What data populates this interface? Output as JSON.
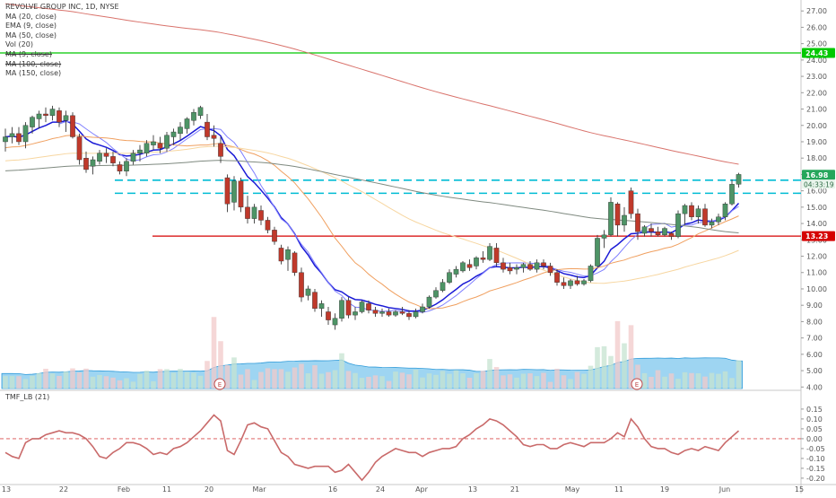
{
  "chart_data": {
    "type": "candlestick",
    "title": "REVOLVE GROUP INC, 1D, NYSE",
    "indicators": [
      "MA (20, close)",
      "EMA (9, close)",
      "MA (50, close)",
      "Vol (20)",
      "MA (9, close)",
      "MA (100, close)",
      "MA (150, close)"
    ],
    "price_axis_ticks": [
      "27.00",
      "26.00",
      "25.00",
      "24.00",
      "23.00",
      "22.00",
      "21.00",
      "20.00",
      "19.00",
      "18.00",
      "17.00",
      "16.00",
      "15.00",
      "14.00",
      "13.00",
      "12.00",
      "11.00",
      "10.00",
      "9.00",
      "8.00",
      "7.00",
      "6.00",
      "5.00",
      "4.00"
    ],
    "ylim": [
      3.8,
      27.5
    ],
    "date_axis_ticks": [
      "13",
      "22",
      "Feb",
      "11",
      "20",
      "Mar",
      "16",
      "24",
      "Apr",
      "13",
      "21",
      "May",
      "11",
      "19",
      "Jun",
      "15"
    ],
    "price_labels": {
      "last": "16.98",
      "countdown": "04:33:19",
      "resistance": "24.43",
      "support": "13.23"
    },
    "horizontal_levels": [
      {
        "price": 24.43,
        "color": "#00c800",
        "style": "solid"
      },
      {
        "price": 16.65,
        "color": "#00bcd4",
        "style": "dashed"
      },
      {
        "price": 15.85,
        "color": "#00bcd4",
        "style": "dashed"
      },
      {
        "price": 13.23,
        "color": "#d50000",
        "style": "solid"
      }
    ],
    "candles": [
      [
        19.0,
        19.8,
        18.4,
        19.3
      ],
      [
        19.3,
        19.9,
        18.9,
        19.5
      ],
      [
        19.5,
        19.9,
        18.8,
        19.0
      ],
      [
        19.0,
        20.2,
        18.6,
        20.0
      ],
      [
        19.9,
        20.6,
        19.5,
        20.5
      ],
      [
        20.4,
        20.9,
        19.8,
        20.7
      ],
      [
        20.7,
        21.1,
        20.2,
        20.6
      ],
      [
        20.6,
        21.2,
        20.3,
        21.0
      ],
      [
        20.9,
        21.1,
        19.9,
        20.2
      ],
      [
        20.3,
        20.9,
        19.6,
        20.6
      ],
      [
        20.6,
        20.8,
        19.2,
        19.3
      ],
      [
        19.3,
        19.5,
        17.6,
        17.9
      ],
      [
        18.0,
        18.4,
        17.1,
        17.3
      ],
      [
        17.5,
        18.1,
        17.0,
        17.9
      ],
      [
        17.8,
        18.5,
        17.6,
        18.3
      ],
      [
        18.3,
        18.6,
        17.7,
        18.1
      ],
      [
        18.1,
        18.4,
        17.5,
        17.7
      ],
      [
        17.6,
        17.8,
        17.0,
        17.2
      ],
      [
        17.2,
        18.0,
        16.9,
        17.8
      ],
      [
        17.8,
        18.5,
        17.6,
        18.3
      ],
      [
        18.3,
        18.8,
        17.8,
        18.5
      ],
      [
        18.3,
        19.1,
        18.1,
        18.9
      ],
      [
        18.8,
        19.4,
        18.5,
        19.0
      ],
      [
        18.9,
        19.3,
        18.3,
        18.6
      ],
      [
        18.6,
        19.6,
        18.4,
        19.4
      ],
      [
        19.3,
        19.8,
        18.8,
        19.6
      ],
      [
        19.5,
        20.2,
        19.1,
        19.9
      ],
      [
        19.8,
        20.5,
        19.5,
        20.4
      ],
      [
        20.3,
        21.0,
        20.0,
        20.8
      ],
      [
        20.6,
        21.2,
        20.4,
        21.1
      ],
      [
        20.2,
        20.7,
        19.1,
        19.3
      ],
      [
        19.4,
        20.0,
        18.7,
        19.2
      ],
      [
        18.9,
        19.3,
        17.7,
        18.1
      ],
      [
        16.8,
        17.0,
        14.7,
        15.2
      ],
      [
        15.3,
        16.9,
        14.8,
        16.6
      ],
      [
        16.6,
        16.8,
        14.7,
        15.0
      ],
      [
        15.0,
        15.7,
        14.0,
        14.3
      ],
      [
        14.3,
        15.2,
        14.0,
        15.0
      ],
      [
        14.8,
        15.1,
        13.9,
        14.2
      ],
      [
        14.2,
        14.4,
        13.4,
        13.6
      ],
      [
        13.6,
        13.8,
        12.7,
        12.9
      ],
      [
        12.5,
        12.7,
        11.5,
        11.7
      ],
      [
        11.8,
        12.6,
        11.1,
        12.4
      ],
      [
        12.2,
        12.3,
        10.8,
        11.0
      ],
      [
        11.0,
        11.3,
        9.2,
        9.5
      ],
      [
        9.6,
        10.2,
        9.3,
        10.0
      ],
      [
        9.8,
        10.0,
        8.6,
        8.8
      ],
      [
        8.8,
        9.3,
        8.3,
        9.1
      ],
      [
        8.6,
        8.9,
        7.8,
        8.1
      ],
      [
        7.8,
        8.5,
        7.5,
        8.2
      ],
      [
        8.2,
        9.5,
        8.0,
        9.3
      ],
      [
        9.3,
        9.5,
        8.2,
        8.4
      ],
      [
        8.4,
        8.9,
        8.1,
        8.6
      ],
      [
        8.6,
        9.3,
        8.5,
        9.2
      ],
      [
        9.1,
        9.3,
        8.5,
        8.7
      ],
      [
        8.7,
        8.9,
        8.3,
        8.5
      ],
      [
        8.5,
        8.8,
        8.3,
        8.6
      ],
      [
        8.6,
        8.8,
        8.3,
        8.4
      ],
      [
        8.4,
        8.7,
        8.3,
        8.6
      ],
      [
        8.6,
        8.9,
        8.4,
        8.5
      ],
      [
        8.5,
        8.7,
        8.1,
        8.3
      ],
      [
        8.3,
        8.8,
        8.2,
        8.6
      ],
      [
        8.6,
        9.1,
        8.5,
        8.9
      ],
      [
        8.9,
        9.6,
        8.8,
        9.5
      ],
      [
        9.5,
        10.1,
        9.4,
        9.9
      ],
      [
        9.9,
        10.6,
        9.8,
        10.4
      ],
      [
        10.4,
        11.2,
        10.3,
        11.0
      ],
      [
        10.9,
        11.4,
        10.7,
        11.2
      ],
      [
        11.1,
        11.7,
        11.0,
        11.6
      ],
      [
        11.5,
        11.8,
        11.1,
        11.3
      ],
      [
        11.4,
        12.0,
        11.2,
        11.9
      ],
      [
        11.9,
        12.3,
        11.6,
        11.8
      ],
      [
        11.8,
        12.8,
        11.7,
        12.6
      ],
      [
        12.5,
        12.8,
        11.4,
        11.6
      ],
      [
        11.6,
        11.9,
        11.0,
        11.2
      ],
      [
        11.3,
        11.6,
        10.9,
        11.1
      ],
      [
        11.2,
        11.5,
        10.9,
        11.3
      ],
      [
        11.3,
        11.6,
        11.0,
        11.5
      ],
      [
        11.5,
        11.7,
        11.1,
        11.2
      ],
      [
        11.2,
        11.8,
        11.0,
        11.6
      ],
      [
        11.6,
        11.8,
        11.2,
        11.4
      ],
      [
        11.4,
        11.6,
        10.8,
        11.0
      ],
      [
        11.0,
        11.2,
        10.2,
        10.4
      ],
      [
        10.4,
        10.7,
        10.0,
        10.2
      ],
      [
        10.2,
        10.6,
        10.0,
        10.5
      ],
      [
        10.5,
        10.8,
        10.2,
        10.3
      ],
      [
        10.3,
        10.6,
        10.2,
        10.5
      ],
      [
        10.5,
        11.5,
        10.4,
        11.4
      ],
      [
        11.4,
        13.3,
        11.3,
        13.1
      ],
      [
        13.1,
        13.6,
        12.5,
        13.3
      ],
      [
        13.3,
        15.6,
        13.2,
        15.3
      ],
      [
        15.2,
        15.3,
        13.2,
        13.9
      ],
      [
        13.9,
        15.0,
        13.5,
        14.5
      ],
      [
        16.0,
        16.2,
        14.3,
        14.6
      ],
      [
        14.6,
        14.9,
        13.0,
        13.5
      ],
      [
        13.4,
        13.9,
        13.2,
        13.8
      ],
      [
        13.7,
        14.0,
        13.2,
        13.5
      ],
      [
        13.5,
        13.8,
        13.2,
        13.3
      ],
      [
        13.3,
        13.8,
        13.2,
        13.7
      ],
      [
        13.4,
        13.5,
        13.0,
        13.2
      ],
      [
        13.2,
        14.8,
        13.1,
        14.6
      ],
      [
        14.6,
        15.2,
        13.9,
        15.1
      ],
      [
        15.1,
        15.3,
        14.2,
        14.4
      ],
      [
        14.4,
        15.1,
        14.0,
        14.9
      ],
      [
        14.9,
        15.2,
        13.8,
        13.9
      ],
      [
        13.9,
        14.3,
        13.7,
        14.1
      ],
      [
        14.1,
        14.6,
        13.9,
        14.4
      ],
      [
        14.4,
        15.3,
        14.2,
        15.2
      ],
      [
        15.2,
        16.7,
        15.1,
        16.4
      ],
      [
        16.4,
        17.1,
        16.2,
        17.0
      ]
    ],
    "volume": [
      0.96,
      0.96,
      0.95,
      0.73,
      0.98,
      1.18,
      1.52,
      1.16,
      0.97,
      1.3,
      1.55,
      1.23,
      1.53,
      0.91,
      1.04,
      0.95,
      0.84,
      0.63,
      0.79,
      0.53,
      1.12,
      1.37,
      0.56,
      1.49,
      1.49,
      1.22,
      1.51,
      1.26,
      1.21,
      0.98,
      2.12,
      5.5,
      3.64,
      1.79,
      2.39,
      1.07,
      1.49,
      0.66,
      1.27,
      1.56,
      1.49,
      1.49,
      1.29,
      1.62,
      1.9,
      1.17,
      1.79,
      1.14,
      1.26,
      1.41,
      2.71,
      1.35,
      1.19,
      0.82,
      0.9,
      1.01,
      0.95,
      0.58,
      1.3,
      1.22,
      1.09,
      1.45,
      0.85,
      1.16,
      1.05,
      1.35,
      1.13,
      1.4,
      1.17,
      0.83,
      1.17,
      1.36,
      2.27,
      1.65,
      1.01,
      1.09,
      0.84,
      1.14,
      1.17,
      0.96,
      1.21,
      0.51,
      1.52,
      1.02,
      0.73,
      1.27,
      1.13,
      1.75,
      3.18,
      3.25,
      2.5,
      5.18,
      3.48,
      4.87,
      1.83,
      1.18,
      0.9,
      1.41,
      0.91,
      1.16,
      0.75,
      1.25,
      1.19,
      1.17,
      0.92,
      1.2,
      1.13,
      1.32,
      0.81,
      2.16
    ],
    "tmf": [
      -0.07,
      -0.09,
      -0.1,
      -0.02,
      0.0,
      0.0,
      0.02,
      0.03,
      0.04,
      0.03,
      0.03,
      0.02,
      0.0,
      -0.04,
      -0.09,
      -0.1,
      -0.07,
      -0.05,
      -0.02,
      -0.02,
      -0.03,
      -0.05,
      -0.08,
      -0.07,
      -0.08,
      -0.05,
      -0.04,
      -0.02,
      0.01,
      0.04,
      0.08,
      0.12,
      0.09,
      -0.06,
      -0.08,
      -0.01,
      0.07,
      0.08,
      0.06,
      0.05,
      -0.01,
      -0.07,
      -0.09,
      -0.13,
      -0.14,
      -0.15,
      -0.14,
      -0.14,
      -0.14,
      -0.17,
      -0.16,
      -0.13,
      -0.17,
      -0.21,
      -0.17,
      -0.12,
      -0.09,
      -0.07,
      -0.05,
      -0.06,
      -0.07,
      -0.07,
      -0.09,
      -0.07,
      -0.06,
      -0.05,
      -0.05,
      -0.04,
      0.0,
      0.02,
      0.05,
      0.07,
      0.1,
      0.09,
      0.07,
      0.04,
      0.01,
      -0.03,
      -0.04,
      -0.03,
      -0.03,
      -0.05,
      -0.05,
      -0.03,
      -0.02,
      -0.03,
      -0.04,
      -0.02,
      -0.02,
      -0.02,
      0.0,
      0.03,
      0.01,
      0.1,
      0.06,
      0.0,
      -0.04,
      -0.05,
      -0.05,
      -0.07,
      -0.08,
      -0.06,
      -0.05,
      -0.06,
      -0.04,
      -0.05,
      -0.06,
      -0.02,
      0.01,
      0.04
    ],
    "tmf_axis_ticks": [
      "0.15",
      "0.10",
      "0.05",
      "0.00",
      "-0.05",
      "-0.10",
      "-0.15",
      "-0.20"
    ],
    "tmf_ylim": [
      -0.22,
      0.17
    ],
    "moving_averages": [
      {
        "name": "EMA (9, close)",
        "color": "#1a1ad6"
      },
      {
        "name": "MA (9, close)",
        "color": "#8080ff"
      },
      {
        "name": "MA (20, close)",
        "color": "#f0a060"
      },
      {
        "name": "MA (50, close)",
        "color": "#f7d6a0"
      },
      {
        "name": "MA (100, close)",
        "color": "#7f8a80"
      },
      {
        "name": "MA (150, close)",
        "color": "#d9736c"
      }
    ],
    "earnings_markers": [
      {
        "label": "E"
      },
      {
        "label": "E"
      }
    ],
    "grid": false,
    "colors": {
      "up_body": "#4e9466",
      "down_body": "#c0392b",
      "volume_area": "#4fb2e8",
      "volume_bar_up": "#c5e3d0",
      "volume_bar_down": "#f2c9c9",
      "tmf_line": "#c96a6a",
      "zero_line": "#d84c4c",
      "axis_text": "#555555",
      "last_price_bg": "#26a65b",
      "support_bg": "#d50000",
      "resistance_bg": "#00c800"
    }
  }
}
